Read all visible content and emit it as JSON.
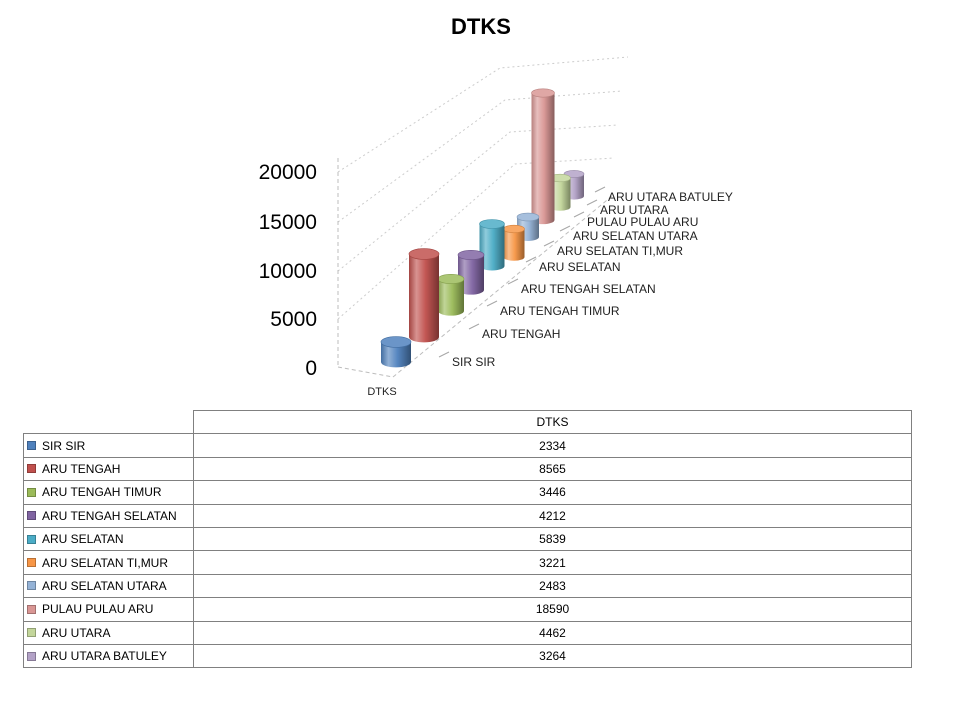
{
  "chart_data": {
    "type": "bar",
    "subtype": "3d-cylinder",
    "title": "DTKS",
    "categories": [
      "SIR SIR",
      "ARU TENGAH",
      "ARU TENGAH TIMUR",
      "ARU TENGAH SELATAN",
      "ARU SELATAN",
      "ARU SELATAN TI,MUR",
      "ARU SELATAN UTARA",
      "PULAU PULAU ARU",
      "ARU UTARA",
      "ARU UTARA BATULEY"
    ],
    "series": [
      {
        "name": "DTKS",
        "values": [
          2334,
          8565,
          3446,
          4212,
          5839,
          3221,
          2483,
          18590,
          4462,
          3264
        ]
      }
    ],
    "colors": [
      "#4F81BD",
      "#C0504D",
      "#9BBB59",
      "#8064A2",
      "#4BACC6",
      "#F79646",
      "#95B3D7",
      "#D99694",
      "#C3D69B",
      "#B3A2C7"
    ],
    "ylim": [
      0,
      20000
    ],
    "y_tick_interval": 5000,
    "y_tick_labels": [
      "20000",
      "15000",
      "10000",
      "5000",
      "0"
    ],
    "series_axis_label": "DTKS",
    "grid": true,
    "legend_position": "data-table-below",
    "background": "#FFFFFF"
  },
  "table": {
    "header": "DTKS",
    "rows": [
      {
        "label": "SIR SIR",
        "value": "2334",
        "color": "#4F81BD"
      },
      {
        "label": "ARU TENGAH",
        "value": "8565",
        "color": "#C0504D"
      },
      {
        "label": "ARU TENGAH TIMUR",
        "value": "3446",
        "color": "#9BBB59"
      },
      {
        "label": "ARU TENGAH SELATAN",
        "value": "4212",
        "color": "#8064A2"
      },
      {
        "label": "ARU SELATAN",
        "value": "5839",
        "color": "#4BACC6"
      },
      {
        "label": "ARU SELATAN TI,MUR",
        "value": "3221",
        "color": "#F79646"
      },
      {
        "label": "ARU SELATAN UTARA",
        "value": "2483",
        "color": "#95B3D7"
      },
      {
        "label": "PULAU PULAU ARU",
        "value": "18590",
        "color": "#D99694"
      },
      {
        "label": "ARU UTARA",
        "value": "4462",
        "color": "#C3D69B"
      },
      {
        "label": "ARU UTARA BATULEY",
        "value": "3264",
        "color": "#B3A2C7"
      }
    ]
  }
}
